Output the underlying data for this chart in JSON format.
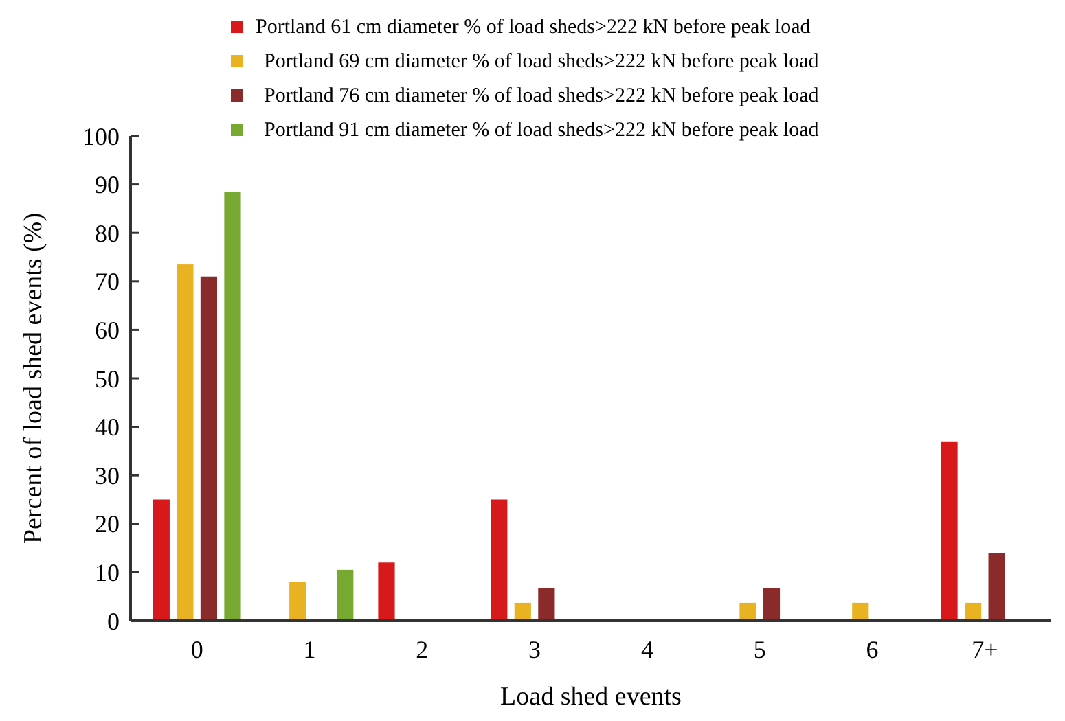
{
  "chart_data": {
    "type": "bar",
    "xlabel": "Load shed events",
    "ylabel": "Percent of load shed events (%)",
    "categories": [
      "0",
      "1",
      "2",
      "3",
      "4",
      "5",
      "6",
      "7+"
    ],
    "series": [
      {
        "name": "Portland 61 cm diameter % of load sheds>222 kN before peak load",
        "color": "#d7191c",
        "values": [
          25,
          null,
          12,
          25,
          null,
          null,
          null,
          37
        ]
      },
      {
        "name": "Portland 69 cm diameter % of load sheds>222 kN before peak load",
        "color": "#e8b222",
        "values": [
          73.5,
          8,
          null,
          3.7,
          null,
          3.7,
          3.7,
          3.7
        ]
      },
      {
        "name": "Portland 76 cm diameter % of load sheds>222 kN before peak load",
        "color": "#8b2a2a",
        "values": [
          71,
          null,
          null,
          6.7,
          null,
          6.7,
          null,
          14
        ]
      },
      {
        "name": "Portland 91 cm diameter % of load sheds>222 kN before peak load",
        "color": "#77a82f",
        "values": [
          88.5,
          10.5,
          null,
          null,
          null,
          null,
          null,
          null
        ]
      }
    ],
    "ylim": [
      0,
      100
    ],
    "yticks": [
      0,
      10,
      20,
      30,
      40,
      50,
      60,
      70,
      80,
      90,
      100
    ],
    "grid": false,
    "legend": "top"
  }
}
